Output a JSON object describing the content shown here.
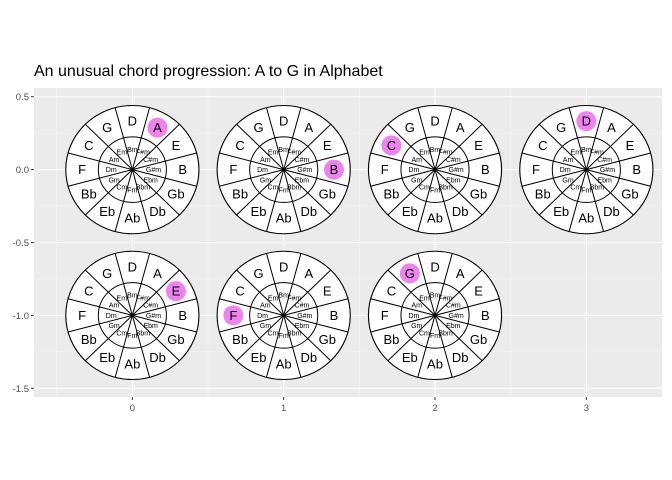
{
  "title": "An unusual chord progression: A to G in Alphabet",
  "colors": {
    "panel_bg": "#ebebeb",
    "grid_major": "#ffffff",
    "grid_minor": "#f4f4f4",
    "axis_text": "#4d4d4d",
    "tick": "#333333",
    "wheel_fill": "#ffffff",
    "wheel_stroke": "#000000",
    "highlight": "#ee82ee"
  },
  "chart_data": {
    "type": "scatter",
    "title": "An unusual chord progression: A to G in Alphabet",
    "xlabel": "",
    "ylabel": "",
    "xlim": [
      -0.65,
      3.5
    ],
    "ylim": [
      -1.56,
      0.56
    ],
    "x_ticks": [
      0,
      1,
      2,
      3
    ],
    "x_tick_labels": [
      "0",
      "1",
      "2",
      "3"
    ],
    "y_ticks": [
      0.5,
      0.0,
      -0.5,
      -1.0,
      -1.5
    ],
    "y_tick_labels": [
      "0.5",
      "0.0",
      "-0.5",
      "-1.0",
      "-1.5"
    ],
    "grid": true,
    "legend": "none",
    "wheel_outer_radius": 0.44,
    "wheel_inner_radius": 0.225,
    "major_chords": [
      "D",
      "A",
      "E",
      "B",
      "Gb",
      "Db",
      "Ab",
      "Eb",
      "Bb",
      "F",
      "C",
      "G"
    ],
    "minor_chords": [
      "Bm",
      "F#m",
      "C#m",
      "G#m",
      "Ebm",
      "Bbm",
      "Fm",
      "Cm",
      "Gm",
      "Dm",
      "Am",
      "Em"
    ],
    "wheels": [
      {
        "x": 0,
        "y": 0,
        "highlight": "A"
      },
      {
        "x": 1,
        "y": 0,
        "highlight": "B"
      },
      {
        "x": 2,
        "y": 0,
        "highlight": "C"
      },
      {
        "x": 3,
        "y": 0,
        "highlight": "D"
      },
      {
        "x": 0,
        "y": -1,
        "highlight": "E"
      },
      {
        "x": 1,
        "y": -1,
        "highlight": "F"
      },
      {
        "x": 2,
        "y": -1,
        "highlight": "G"
      }
    ]
  }
}
